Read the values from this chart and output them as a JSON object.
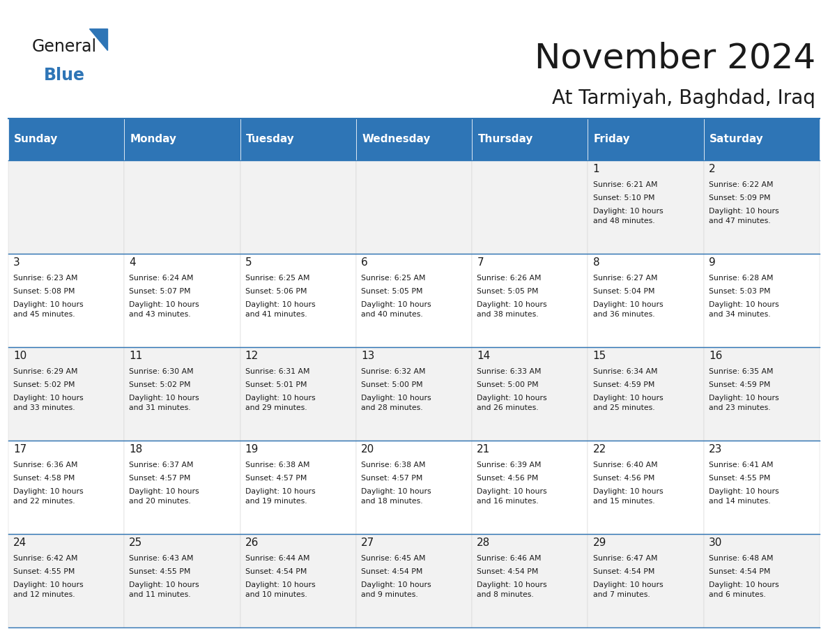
{
  "title": "November 2024",
  "subtitle": "At Tarmiyah, Baghdad, Iraq",
  "header_bg": "#2E75B6",
  "header_text": "#FFFFFF",
  "cell_bg_light": "#F2F2F2",
  "cell_bg_white": "#FFFFFF",
  "title_color": "#1a1a1a",
  "subtitle_color": "#1a1a1a",
  "days_of_week": [
    "Sunday",
    "Monday",
    "Tuesday",
    "Wednesday",
    "Thursday",
    "Friday",
    "Saturday"
  ],
  "weeks": [
    [
      {
        "day": "",
        "sunrise": "",
        "sunset": "",
        "daylight": ""
      },
      {
        "day": "",
        "sunrise": "",
        "sunset": "",
        "daylight": ""
      },
      {
        "day": "",
        "sunrise": "",
        "sunset": "",
        "daylight": ""
      },
      {
        "day": "",
        "sunrise": "",
        "sunset": "",
        "daylight": ""
      },
      {
        "day": "",
        "sunrise": "",
        "sunset": "",
        "daylight": ""
      },
      {
        "day": "1",
        "sunrise": "Sunrise: 6:21 AM",
        "sunset": "Sunset: 5:10 PM",
        "daylight": "Daylight: 10 hours\nand 48 minutes."
      },
      {
        "day": "2",
        "sunrise": "Sunrise: 6:22 AM",
        "sunset": "Sunset: 5:09 PM",
        "daylight": "Daylight: 10 hours\nand 47 minutes."
      }
    ],
    [
      {
        "day": "3",
        "sunrise": "Sunrise: 6:23 AM",
        "sunset": "Sunset: 5:08 PM",
        "daylight": "Daylight: 10 hours\nand 45 minutes."
      },
      {
        "day": "4",
        "sunrise": "Sunrise: 6:24 AM",
        "sunset": "Sunset: 5:07 PM",
        "daylight": "Daylight: 10 hours\nand 43 minutes."
      },
      {
        "day": "5",
        "sunrise": "Sunrise: 6:25 AM",
        "sunset": "Sunset: 5:06 PM",
        "daylight": "Daylight: 10 hours\nand 41 minutes."
      },
      {
        "day": "6",
        "sunrise": "Sunrise: 6:25 AM",
        "sunset": "Sunset: 5:05 PM",
        "daylight": "Daylight: 10 hours\nand 40 minutes."
      },
      {
        "day": "7",
        "sunrise": "Sunrise: 6:26 AM",
        "sunset": "Sunset: 5:05 PM",
        "daylight": "Daylight: 10 hours\nand 38 minutes."
      },
      {
        "day": "8",
        "sunrise": "Sunrise: 6:27 AM",
        "sunset": "Sunset: 5:04 PM",
        "daylight": "Daylight: 10 hours\nand 36 minutes."
      },
      {
        "day": "9",
        "sunrise": "Sunrise: 6:28 AM",
        "sunset": "Sunset: 5:03 PM",
        "daylight": "Daylight: 10 hours\nand 34 minutes."
      }
    ],
    [
      {
        "day": "10",
        "sunrise": "Sunrise: 6:29 AM",
        "sunset": "Sunset: 5:02 PM",
        "daylight": "Daylight: 10 hours\nand 33 minutes."
      },
      {
        "day": "11",
        "sunrise": "Sunrise: 6:30 AM",
        "sunset": "Sunset: 5:02 PM",
        "daylight": "Daylight: 10 hours\nand 31 minutes."
      },
      {
        "day": "12",
        "sunrise": "Sunrise: 6:31 AM",
        "sunset": "Sunset: 5:01 PM",
        "daylight": "Daylight: 10 hours\nand 29 minutes."
      },
      {
        "day": "13",
        "sunrise": "Sunrise: 6:32 AM",
        "sunset": "Sunset: 5:00 PM",
        "daylight": "Daylight: 10 hours\nand 28 minutes."
      },
      {
        "day": "14",
        "sunrise": "Sunrise: 6:33 AM",
        "sunset": "Sunset: 5:00 PM",
        "daylight": "Daylight: 10 hours\nand 26 minutes."
      },
      {
        "day": "15",
        "sunrise": "Sunrise: 6:34 AM",
        "sunset": "Sunset: 4:59 PM",
        "daylight": "Daylight: 10 hours\nand 25 minutes."
      },
      {
        "day": "16",
        "sunrise": "Sunrise: 6:35 AM",
        "sunset": "Sunset: 4:59 PM",
        "daylight": "Daylight: 10 hours\nand 23 minutes."
      }
    ],
    [
      {
        "day": "17",
        "sunrise": "Sunrise: 6:36 AM",
        "sunset": "Sunset: 4:58 PM",
        "daylight": "Daylight: 10 hours\nand 22 minutes."
      },
      {
        "day": "18",
        "sunrise": "Sunrise: 6:37 AM",
        "sunset": "Sunset: 4:57 PM",
        "daylight": "Daylight: 10 hours\nand 20 minutes."
      },
      {
        "day": "19",
        "sunrise": "Sunrise: 6:38 AM",
        "sunset": "Sunset: 4:57 PM",
        "daylight": "Daylight: 10 hours\nand 19 minutes."
      },
      {
        "day": "20",
        "sunrise": "Sunrise: 6:38 AM",
        "sunset": "Sunset: 4:57 PM",
        "daylight": "Daylight: 10 hours\nand 18 minutes."
      },
      {
        "day": "21",
        "sunrise": "Sunrise: 6:39 AM",
        "sunset": "Sunset: 4:56 PM",
        "daylight": "Daylight: 10 hours\nand 16 minutes."
      },
      {
        "day": "22",
        "sunrise": "Sunrise: 6:40 AM",
        "sunset": "Sunset: 4:56 PM",
        "daylight": "Daylight: 10 hours\nand 15 minutes."
      },
      {
        "day": "23",
        "sunrise": "Sunrise: 6:41 AM",
        "sunset": "Sunset: 4:55 PM",
        "daylight": "Daylight: 10 hours\nand 14 minutes."
      }
    ],
    [
      {
        "day": "24",
        "sunrise": "Sunrise: 6:42 AM",
        "sunset": "Sunset: 4:55 PM",
        "daylight": "Daylight: 10 hours\nand 12 minutes."
      },
      {
        "day": "25",
        "sunrise": "Sunrise: 6:43 AM",
        "sunset": "Sunset: 4:55 PM",
        "daylight": "Daylight: 10 hours\nand 11 minutes."
      },
      {
        "day": "26",
        "sunrise": "Sunrise: 6:44 AM",
        "sunset": "Sunset: 4:54 PM",
        "daylight": "Daylight: 10 hours\nand 10 minutes."
      },
      {
        "day": "27",
        "sunrise": "Sunrise: 6:45 AM",
        "sunset": "Sunset: 4:54 PM",
        "daylight": "Daylight: 10 hours\nand 9 minutes."
      },
      {
        "day": "28",
        "sunrise": "Sunrise: 6:46 AM",
        "sunset": "Sunset: 4:54 PM",
        "daylight": "Daylight: 10 hours\nand 8 minutes."
      },
      {
        "day": "29",
        "sunrise": "Sunrise: 6:47 AM",
        "sunset": "Sunset: 4:54 PM",
        "daylight": "Daylight: 10 hours\nand 7 minutes."
      },
      {
        "day": "30",
        "sunrise": "Sunrise: 6:48 AM",
        "sunset": "Sunset: 4:54 PM",
        "daylight": "Daylight: 10 hours\nand 6 minutes."
      }
    ]
  ]
}
